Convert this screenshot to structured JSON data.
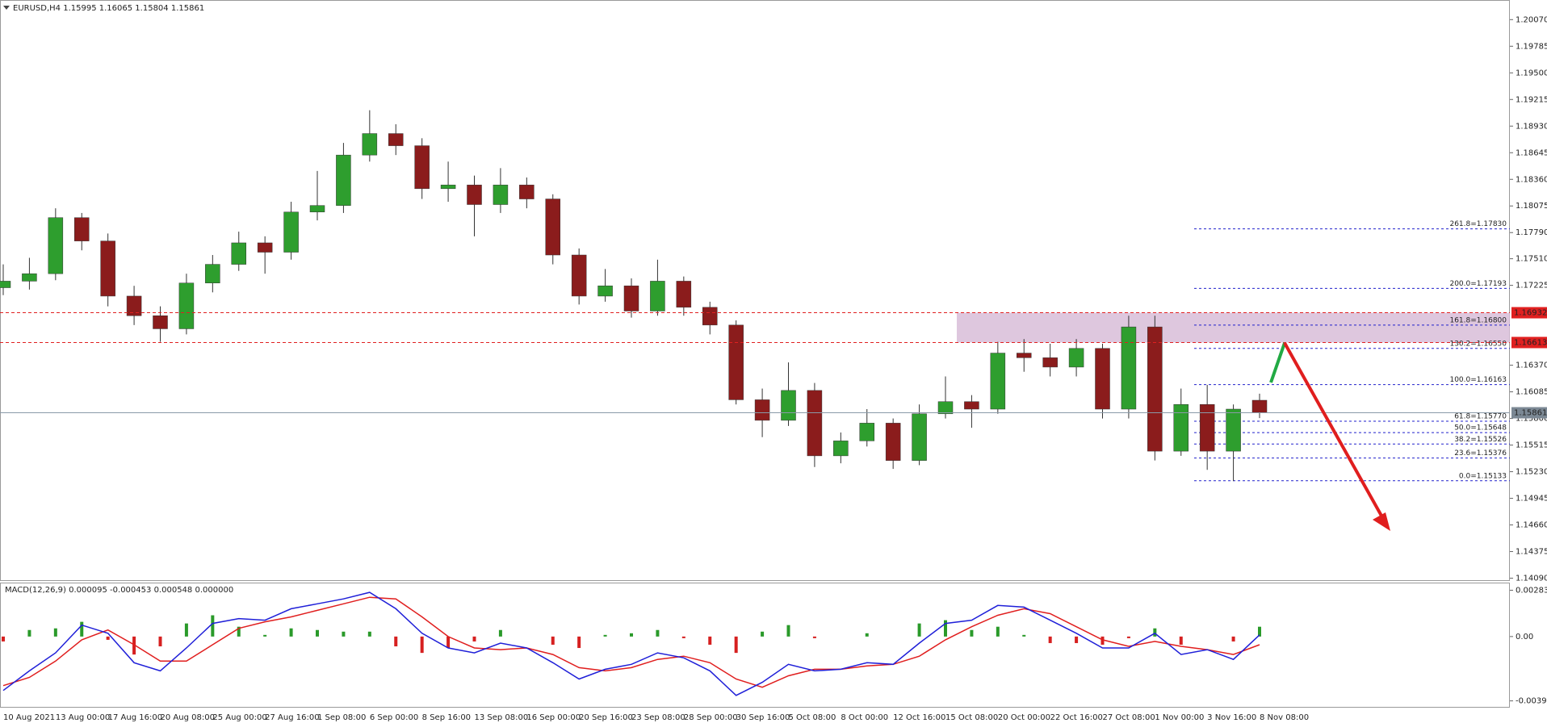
{
  "chart_data": [
    {
      "type": "candlestick",
      "symbol": "EURUSD,H4",
      "up_color": "#2e9e2e",
      "down_color": "#8b1c1c",
      "wick_color": "#333333",
      "categories": [
        "10 Aug 2021",
        null,
        "13 Aug 00:00",
        null,
        "17 Aug 16:00",
        null,
        "20 Aug 08:00",
        null,
        "25 Aug 00:00",
        null,
        "27 Aug 16:00",
        null,
        "1 Sep 08:00",
        null,
        "6 Sep 00:00",
        null,
        "8 Sep 16:00",
        null,
        "13 Sep 08:00",
        null,
        "16 Sep 00:00",
        null,
        "20 Sep 16:00",
        null,
        "23 Sep 08:00",
        null,
        "28 Sep 00:00",
        null,
        "30 Sep 16:00",
        null,
        "5 Oct 08:00",
        null,
        "8 Oct 00:00",
        null,
        "12 Oct 16:00",
        null,
        "15 Oct 08:00",
        null,
        "20 Oct 00:00",
        null,
        "22 Oct 16:00",
        null,
        "27 Oct 08:00",
        null,
        "1 Nov 00:00",
        null,
        "3 Nov 16:00",
        null,
        "8 Nov 08:00"
      ],
      "candles": [
        [
          1.172,
          1.1745,
          1.1712,
          1.1727
        ],
        [
          1.1727,
          1.1752,
          1.1718,
          1.1735
        ],
        [
          1.1735,
          1.1805,
          1.1728,
          1.1795
        ],
        [
          1.1795,
          1.18,
          1.176,
          1.177
        ],
        [
          1.177,
          1.1778,
          1.17,
          1.1711
        ],
        [
          1.1711,
          1.1722,
          1.168,
          1.169
        ],
        [
          1.169,
          1.17,
          1.1662,
          1.1676
        ],
        [
          1.1676,
          1.1735,
          1.167,
          1.1725
        ],
        [
          1.1725,
          1.1755,
          1.1715,
          1.1745
        ],
        [
          1.1745,
          1.178,
          1.1738,
          1.1768
        ],
        [
          1.1768,
          1.1775,
          1.1735,
          1.1758
        ],
        [
          1.1758,
          1.1812,
          1.175,
          1.1801
        ],
        [
          1.1801,
          1.1845,
          1.1792,
          1.1808
        ],
        [
          1.1808,
          1.1875,
          1.18,
          1.1862
        ],
        [
          1.1862,
          1.191,
          1.1855,
          1.1885
        ],
        [
          1.1885,
          1.1895,
          1.1862,
          1.1872
        ],
        [
          1.1872,
          1.188,
          1.1815,
          1.1826
        ],
        [
          1.1826,
          1.1855,
          1.1812,
          1.183
        ],
        [
          1.183,
          1.184,
          1.1775,
          1.1809
        ],
        [
          1.1809,
          1.1848,
          1.18,
          1.183
        ],
        [
          1.183,
          1.1838,
          1.1805,
          1.1815
        ],
        [
          1.1815,
          1.182,
          1.1745,
          1.1755
        ],
        [
          1.1755,
          1.1762,
          1.1702,
          1.1711
        ],
        [
          1.1711,
          1.174,
          1.1705,
          1.1722
        ],
        [
          1.1722,
          1.173,
          1.1688,
          1.1695
        ],
        [
          1.1695,
          1.175,
          1.169,
          1.1727
        ],
        [
          1.1727,
          1.1732,
          1.169,
          1.1699
        ],
        [
          1.1699,
          1.1705,
          1.167,
          1.168
        ],
        [
          1.168,
          1.1685,
          1.1595,
          1.16
        ],
        [
          1.16,
          1.1612,
          1.156,
          1.1578
        ],
        [
          1.1578,
          1.164,
          1.1572,
          1.161
        ],
        [
          1.161,
          1.1618,
          1.1528,
          1.154
        ],
        [
          1.154,
          1.1565,
          1.1532,
          1.1556
        ],
        [
          1.1556,
          1.159,
          1.155,
          1.1575
        ],
        [
          1.1575,
          1.158,
          1.1526,
          1.1535
        ],
        [
          1.1535,
          1.1595,
          1.153,
          1.1585
        ],
        [
          1.1585,
          1.1625,
          1.158,
          1.1598
        ],
        [
          1.1598,
          1.1605,
          1.157,
          1.159
        ],
        [
          1.159,
          1.1662,
          1.1585,
          1.165
        ],
        [
          1.165,
          1.1665,
          1.163,
          1.1645
        ],
        [
          1.1645,
          1.166,
          1.1625,
          1.1635
        ],
        [
          1.1635,
          1.1665,
          1.1625,
          1.1655
        ],
        [
          1.1655,
          1.166,
          1.158,
          1.159
        ],
        [
          1.159,
          1.169,
          1.158,
          1.1678
        ],
        [
          1.1678,
          1.169,
          1.1535,
          1.1545
        ],
        [
          1.1545,
          1.1612,
          1.154,
          1.1595
        ],
        [
          1.1595,
          1.1616,
          1.1525,
          1.1545
        ],
        [
          1.1545,
          1.1595,
          1.1513,
          1.159
        ],
        [
          1.15995,
          1.16065,
          1.15804,
          1.15861
        ]
      ],
      "ylim": [
        1.1406,
        1.2028
      ],
      "yticks": [
        {
          "value": 1.2007,
          "label": "1.20070"
        },
        {
          "value": 1.19785,
          "label": "1.19785"
        },
        {
          "value": 1.195,
          "label": "1.19500"
        },
        {
          "value": 1.19215,
          "label": "1.19215"
        },
        {
          "value": 1.1893,
          "label": "1.18930"
        },
        {
          "value": 1.18645,
          "label": "1.18645"
        },
        {
          "value": 1.1836,
          "label": "1.18360"
        },
        {
          "value": 1.18075,
          "label": "1.18075"
        },
        {
          "value": 1.1779,
          "label": "1.17790"
        },
        {
          "value": 1.1751,
          "label": "1.17510"
        },
        {
          "value": 1.17225,
          "label": "1.17225"
        },
        {
          "value": 1.1637,
          "label": "1.16370"
        },
        {
          "value": 1.16085,
          "label": "1.16085"
        },
        {
          "value": 1.158,
          "label": "1.15800"
        },
        {
          "value": 1.15515,
          "label": "1.15515"
        },
        {
          "value": 1.1523,
          "label": "1.15230"
        },
        {
          "value": 1.14945,
          "label": "1.14945"
        },
        {
          "value": 1.1466,
          "label": "1.14660"
        },
        {
          "value": 1.14375,
          "label": "1.14375"
        },
        {
          "value": 1.1409,
          "label": "1.14090"
        }
      ],
      "resistance_levels": [
        1.16932,
        1.16613
      ],
      "resistance_color": "#e02020",
      "zone_color": "#d6b9d6",
      "fib_color": "#2020cc",
      "fib_levels": [
        {
          "value": 1.1783,
          "label": "261.8=1.17830"
        },
        {
          "value": 1.17193,
          "label": "200.0=1.17193"
        },
        {
          "value": 1.168,
          "label": "161.8=1.16800"
        },
        {
          "value": 1.1655,
          "label": "130.2=1.16550"
        },
        {
          "value": 1.16163,
          "label": "100.0=1.16163"
        },
        {
          "value": 1.1577,
          "label": "61.8=1.15770"
        },
        {
          "value": 1.15648,
          "label": "50.0=1.15648"
        },
        {
          "value": 1.15526,
          "label": "38.2=1.15526"
        },
        {
          "value": 1.15376,
          "label": "23.6=1.15376"
        },
        {
          "value": 1.15133,
          "label": "0.0=1.15133"
        }
      ]
    },
    {
      "type": "macd",
      "title": "MACD(12,26,9)",
      "header_values": [
        "0.000095",
        "-0.000453",
        "0.000548",
        "0.000000"
      ],
      "ylim": [
        -0.0043,
        0.0032
      ],
      "yticks": [
        0.002832,
        {
          "value": 0,
          "label": "0.00"
        },
        -0.003934
      ],
      "main": {
        "color": "#1f1fd8",
        "values": [
          -0.0033,
          -0.0021,
          -0.001,
          0.0007,
          0.0002,
          -0.0016,
          -0.0021,
          -0.0007,
          0.0008,
          0.0011,
          0.001,
          0.0017,
          0.002,
          0.0023,
          0.0027,
          0.0017,
          0.0002,
          -0.0007,
          -0.001,
          -0.0004,
          -0.0007,
          -0.0016,
          -0.0026,
          -0.002,
          -0.0017,
          -0.001,
          -0.0013,
          -0.0021,
          -0.0036,
          -0.0028,
          -0.0017,
          -0.0021,
          -0.002,
          -0.0016,
          -0.0017,
          -0.0004,
          0.0008,
          0.001,
          0.0019,
          0.0018,
          0.001,
          0.0002,
          -0.0007,
          -0.0007,
          0.0002,
          -0.0011,
          -0.0008,
          -0.0014,
          0.0001
        ]
      },
      "signal": {
        "color": "#e01e1e",
        "values": [
          -0.003,
          -0.0025,
          -0.0015,
          -0.0002,
          0.0004,
          -0.0005,
          -0.0015,
          -0.0015,
          -0.0005,
          0.0005,
          0.0009,
          0.0012,
          0.0016,
          0.002,
          0.0024,
          0.0023,
          0.0012,
          0.0,
          -0.0007,
          -0.0008,
          -0.0007,
          -0.0011,
          -0.0019,
          -0.0021,
          -0.0019,
          -0.0014,
          -0.0012,
          -0.0016,
          -0.0026,
          -0.0031,
          -0.0024,
          -0.002,
          -0.002,
          -0.0018,
          -0.0017,
          -0.0012,
          -0.0002,
          0.0006,
          0.0013,
          0.0017,
          0.0014,
          0.0006,
          -0.0002,
          -0.0006,
          -0.0003,
          -0.0006,
          -0.0008,
          -0.0011,
          -0.0005
        ]
      },
      "histogram": {
        "up_color": "#2a9a2a",
        "down_color": "#d62020",
        "values": [
          -0.0003,
          0.0004,
          0.0005,
          0.0009,
          -0.0002,
          -0.0011,
          -0.0006,
          0.0008,
          0.0013,
          0.0006,
          0.0001,
          0.0005,
          0.0004,
          0.0003,
          0.0003,
          -0.0006,
          -0.001,
          -0.0007,
          -0.0003,
          0.0004,
          0.0,
          -0.0005,
          -0.0007,
          0.0001,
          0.0002,
          0.0004,
          -0.0001,
          -0.0005,
          -0.001,
          0.0003,
          0.0007,
          -0.0001,
          0.0,
          0.0002,
          0.0,
          0.0008,
          0.001,
          0.0004,
          0.0006,
          0.0001,
          -0.0004,
          -0.0004,
          -0.0005,
          -0.0001,
          0.0005,
          -0.0005,
          0.0,
          -0.0003,
          0.0006
        ]
      }
    }
  ]
}
